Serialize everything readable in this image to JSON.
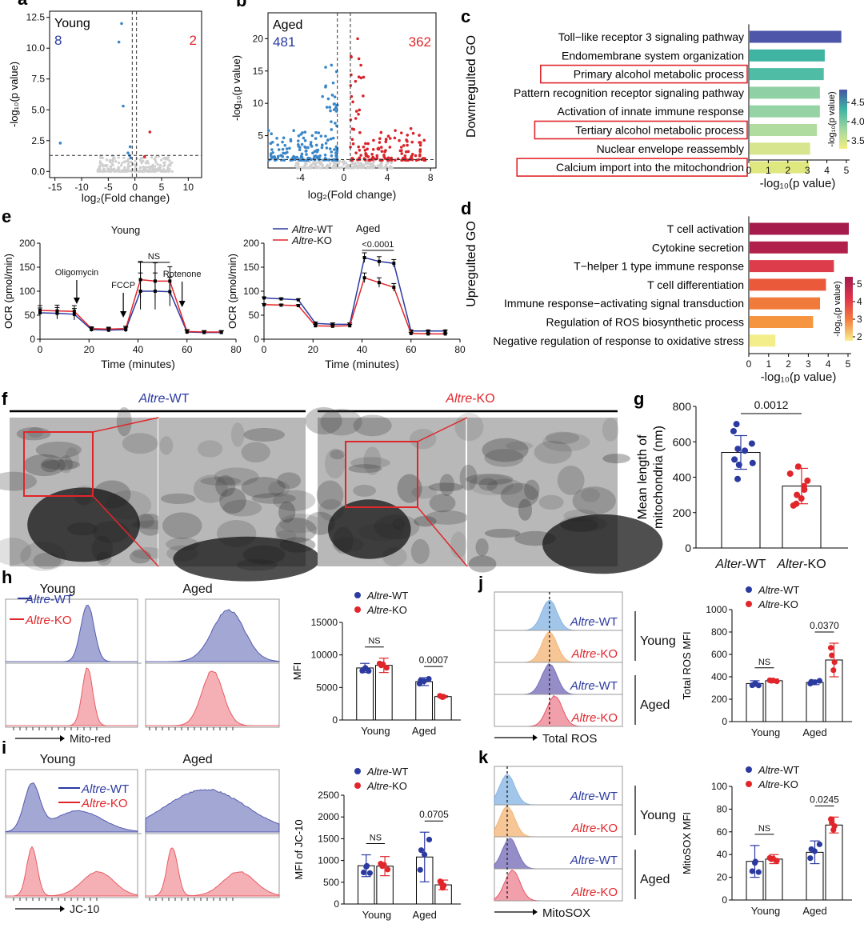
{
  "colors": {
    "wt": "#2b3aa0",
    "ko": "#e0262b",
    "blue_pt": "#3a86c8",
    "red_pt": "#d9232a"
  },
  "panels": {
    "a": {
      "letter": "a",
      "group": "Young",
      "down_count": "8",
      "up_count": "2",
      "xlabel": "log₂(Fold change)",
      "ylabel": "-log₁₀(p value)",
      "xticks": [
        "-15",
        "-10",
        "-5",
        "0",
        "5",
        "10"
      ],
      "yticks": [
        "0.0",
        "2.5",
        "5.0",
        "7.5",
        "10.0",
        "12.5"
      ]
    },
    "b": {
      "letter": "b",
      "group": "Aged",
      "down_count": "481",
      "up_count": "362",
      "xlabel": "log₂(Fold change)",
      "ylabel": "-log₁₀(p value)",
      "xticks": [
        "-4",
        "0",
        "4",
        "8"
      ],
      "yticks": [
        "5",
        "10",
        "15",
        "20"
      ]
    },
    "c": {
      "letter": "c",
      "side": "Downregulted GO",
      "xlabel": "-log₁₀(p value)",
      "xticks": [
        "0",
        "1",
        "2",
        "3",
        "4",
        "5"
      ],
      "cbar_title": "-log₁₀(p value)",
      "cbar_ticks": [
        "4.5",
        "4.0",
        "3.5"
      ],
      "terms": [
        {
          "label": "Toll−like receptor 3 signaling pathway",
          "value": 4.7,
          "color": "#4d56a8",
          "boxed": false
        },
        {
          "label": "Endomembrane system organization",
          "value": 3.85,
          "color": "#3fb4a3",
          "boxed": false
        },
        {
          "label": "Primary alcohol metabolic process",
          "value": 3.8,
          "color": "#4fbda5",
          "boxed": true
        },
        {
          "label": "Pattern recognition receptor signaling pathway",
          "value": 3.6,
          "color": "#8fd0a5",
          "boxed": false
        },
        {
          "label": "Activation of innate immune response",
          "value": 3.6,
          "color": "#95d3a4",
          "boxed": false
        },
        {
          "label": "Tertiary alcohol metabolic process",
          "value": 3.45,
          "color": "#b1dc9f",
          "boxed": true
        },
        {
          "label": "Nuclear envelope reassembly",
          "value": 3.1,
          "color": "#d6e58e",
          "boxed": false
        },
        {
          "label": "Calcium import into the mitochondrion",
          "value": 3.05,
          "color": "#dfe77f",
          "boxed": true
        }
      ]
    },
    "d": {
      "letter": "d",
      "side": "Upregulted GO",
      "xlabel": "-log₁₀(p value)",
      "xticks": [
        "0",
        "1",
        "2",
        "3",
        "4",
        "5"
      ],
      "cbar_title": "-log₁₀(p value)",
      "cbar_ticks": [
        "5",
        "4",
        "3",
        "2"
      ],
      "terms": [
        {
          "label": "T cell activation",
          "value": 5.0,
          "color": "#a51c4c"
        },
        {
          "label": "Cytokine secretion",
          "value": 4.95,
          "color": "#b0204b"
        },
        {
          "label": "T−helper 1 type immune response",
          "value": 4.25,
          "color": "#dd3c4a"
        },
        {
          "label": "T cell differentiation",
          "value": 3.85,
          "color": "#ea5a3a"
        },
        {
          "label": "Immune response−activating signal transduction",
          "value": 3.55,
          "color": "#f07a3a"
        },
        {
          "label": "Regulation of ROS biosynthetic process",
          "value": 3.2,
          "color": "#f5953f"
        },
        {
          "label": "Negative regulation of response to oxidative stress",
          "value": 1.3,
          "color": "#f3ee8a"
        }
      ]
    },
    "e": {
      "letter": "e",
      "ylabel": "OCR (pmol/min)",
      "xlabel": "Time (minutes)",
      "xticks": [
        "0",
        "20",
        "40",
        "60",
        "80"
      ],
      "yticks": [
        "0",
        "50",
        "100",
        "150",
        "200"
      ],
      "legend_wt": "-WT",
      "legend_ko": "-KO",
      "gene": "Altre",
      "young": {
        "title": "Young",
        "ns": "NS",
        "injections": [
          "Oligomycin",
          "FCCP",
          "Rotenone"
        ],
        "time": [
          0,
          7,
          14,
          21,
          28,
          35,
          41,
          47,
          53,
          60,
          67,
          74
        ],
        "wt": [
          55,
          54,
          52,
          20,
          19,
          20,
          100,
          100,
          99,
          15,
          14,
          14
        ],
        "ko": [
          60,
          59,
          58,
          22,
          21,
          22,
          124,
          121,
          121,
          16,
          15,
          15
        ],
        "err": [
          10,
          12,
          12,
          4,
          4,
          5,
          38,
          38,
          30,
          4,
          3,
          3
        ]
      },
      "aged": {
        "title": "Aged",
        "pval": "<0.0001",
        "time": [
          0,
          7,
          14,
          21,
          28,
          35,
          41,
          47,
          53,
          60,
          67,
          74
        ],
        "wt": [
          86,
          84,
          82,
          33,
          31,
          31,
          170,
          162,
          158,
          17,
          17,
          17
        ],
        "ko": [
          72,
          71,
          70,
          28,
          27,
          28,
          128,
          118,
          108,
          12,
          11,
          11
        ],
        "err": [
          2,
          2,
          2,
          3,
          3,
          3,
          10,
          10,
          8,
          2,
          2,
          2
        ]
      }
    },
    "f": {
      "letter": "f",
      "wt_title": "-WT",
      "ko_title": "-KO",
      "gene": "Altre"
    },
    "g": {
      "letter": "g",
      "ylabel1": "Mean length of",
      "ylabel2": "mitochondria (nm)",
      "pval": "0.0012",
      "groups": [
        "-WT",
        "-KO"
      ],
      "gene": "Alter",
      "yticks": [
        "0",
        "200",
        "400",
        "600",
        "800"
      ],
      "wt_mean": 540,
      "wt_sd": 95,
      "ko_mean": 350,
      "ko_sd": 100,
      "wt_points": [
        700,
        660,
        590,
        560,
        550,
        500,
        480,
        470,
        390
      ],
      "ko_points": [
        460,
        420,
        380,
        350,
        330,
        300,
        280,
        250,
        240
      ]
    },
    "h": {
      "letter": "h",
      "young": "Young",
      "aged": "Aged",
      "legend_wt": "-WT",
      "legend_ko": "-KO",
      "gene": "Altre",
      "xlabel": "Mito-red",
      "bar": {
        "ylabel": "MFI",
        "yticks": [
          "0",
          "5000",
          "10000",
          "15000"
        ],
        "groups": [
          "Young",
          "Aged"
        ],
        "ns": "NS",
        "pval": "0.0007",
        "values": [
          8000,
          8400,
          5900,
          3600
        ],
        "sd": [
          700,
          1100,
          600,
          150
        ],
        "max": 15000
      }
    },
    "i": {
      "letter": "i",
      "young": "Young",
      "aged": "Aged",
      "legend_wt": "-WT",
      "legend_ko": "-KO",
      "gene": "Altre",
      "xlabel": "JC-10",
      "bar": {
        "ylabel": "MFI of JC-10",
        "yticks": [
          "0",
          "500",
          "1000",
          "1500",
          "2000",
          "2500"
        ],
        "groups": [
          "Young",
          "Aged"
        ],
        "ns": "NS",
        "pval": "0.0705",
        "values": [
          880,
          870,
          1080,
          440
        ],
        "sd": [
          250,
          220,
          570,
          110
        ],
        "max": 2500
      }
    },
    "j": {
      "letter": "j",
      "xlabel": "Total ROS",
      "gene": "Altre",
      "rows": [
        "-WT",
        "-KO",
        "-WT",
        "-KO"
      ],
      "young": "Young",
      "aged": "Aged",
      "bar": {
        "ylabel": "Total ROS MFI",
        "yticks": [
          "0",
          "200",
          "400",
          "600",
          "800",
          "1000"
        ],
        "groups": [
          "Young",
          "Aged"
        ],
        "ns": "NS",
        "pval": "0.0370",
        "values": [
          340,
          365,
          350,
          550
        ],
        "sd": [
          25,
          15,
          20,
          150
        ],
        "max": 1000
      }
    },
    "k": {
      "letter": "k",
      "xlabel": "MitoSOX",
      "gene": "Altre",
      "rows": [
        "-WT",
        "-KO",
        "-WT",
        "-KO"
      ],
      "young": "Young",
      "aged": "Aged",
      "bar": {
        "ylabel": "MitoSOX MFI",
        "yticks": [
          "0",
          "20",
          "40",
          "60",
          "80",
          "100"
        ],
        "groups": [
          "Young",
          "Aged"
        ],
        "ns": "NS",
        "pval": "0.0245",
        "values": [
          34,
          36,
          42,
          66
        ],
        "sd": [
          14,
          4,
          10,
          7
        ],
        "max": 100
      }
    }
  }
}
